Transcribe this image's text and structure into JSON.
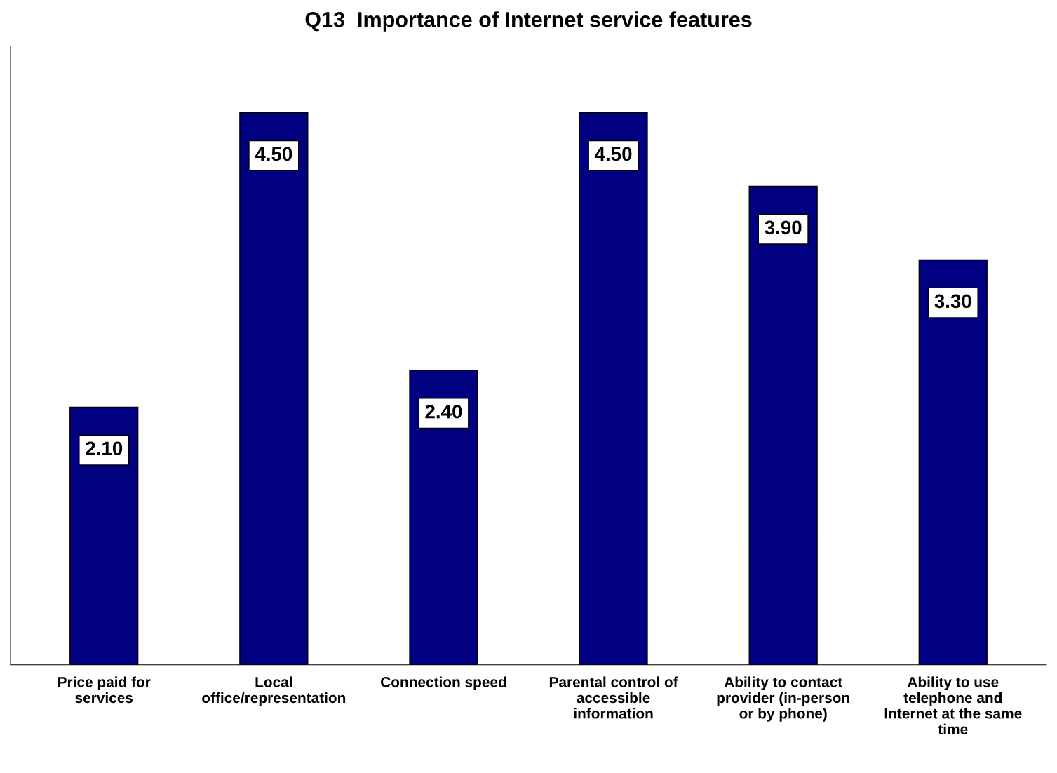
{
  "chart_data": {
    "type": "bar",
    "title": "Q13  Importance of Internet service features",
    "categories": [
      "Price paid for\nservices",
      "Local\noffice/representation",
      "Connection speed",
      "Parental control of\naccessible\ninformation",
      "Ability to contact\nprovider (in-person\nor by phone)",
      "Ability to use\ntelephone and\nInternet at the same\ntime"
    ],
    "values": [
      2.1,
      4.5,
      2.4,
      4.5,
      3.9,
      3.3
    ],
    "value_labels": [
      "2.10",
      "4.50",
      "2.40",
      "4.50",
      "3.90",
      "3.30"
    ],
    "color": "#000080",
    "grid": false,
    "legend": false
  }
}
